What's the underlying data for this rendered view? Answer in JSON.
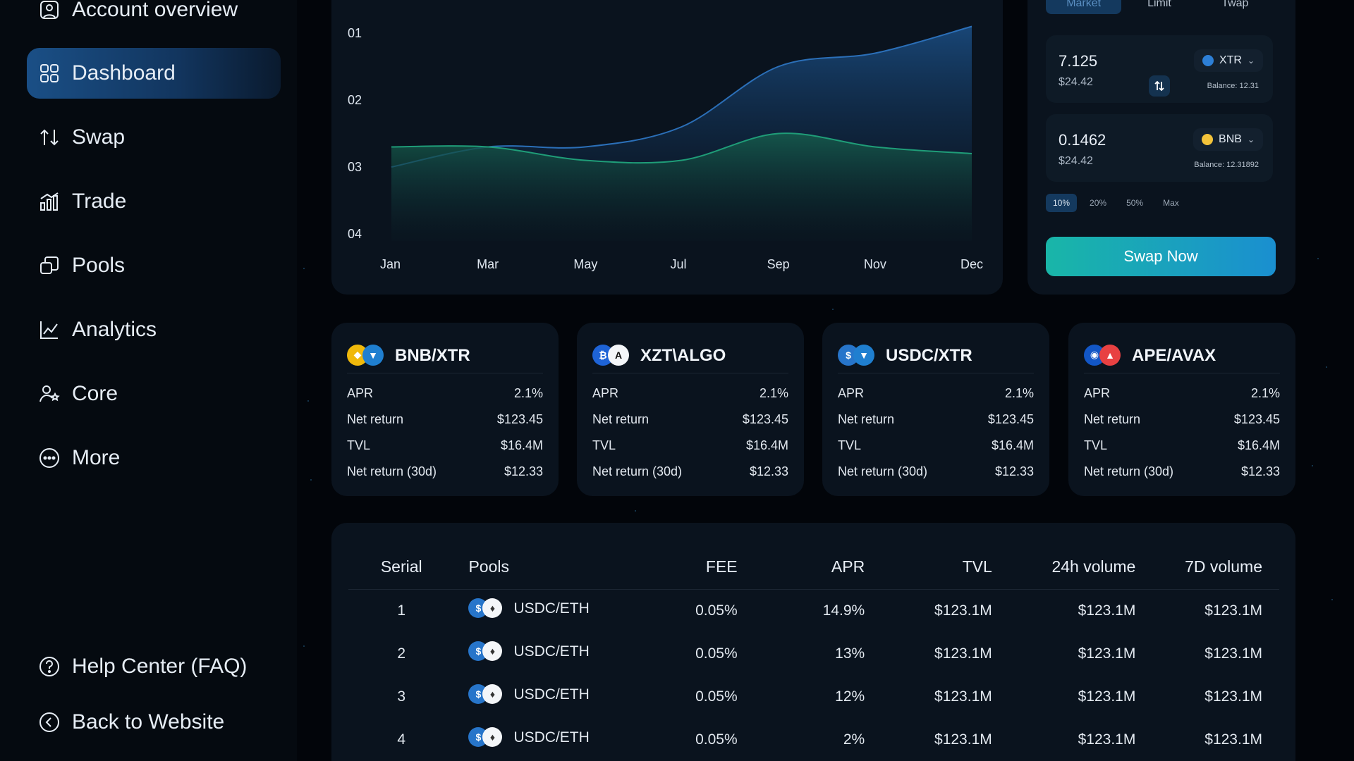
{
  "sidebar": {
    "items": [
      {
        "label": "Account overview",
        "icon": "user-square-icon"
      },
      {
        "label": "Dashboard",
        "icon": "grid-icon",
        "active": true
      },
      {
        "label": "Swap",
        "icon": "swap-arrows-icon"
      },
      {
        "label": "Trade",
        "icon": "bar-chart-icon"
      },
      {
        "label": "Pools",
        "icon": "stacked-coins-icon"
      },
      {
        "label": "Analytics",
        "icon": "line-chart-icon"
      },
      {
        "label": "Core",
        "icon": "user-star-icon"
      },
      {
        "label": "More",
        "icon": "more-circle-icon"
      }
    ],
    "bottom": [
      {
        "label": "Help Center (FAQ)",
        "icon": "question-circle-icon"
      },
      {
        "label": "Back to Website",
        "icon": "back-circle-icon"
      }
    ]
  },
  "chart_data": {
    "type": "area",
    "x": [
      "Jan",
      "Mar",
      "May",
      "Jul",
      "Sep",
      "Nov",
      "Dec"
    ],
    "y_ticks": [
      "01",
      "02",
      "03",
      "04"
    ],
    "series": [
      {
        "color": "#2b6fb8",
        "values": [
          3.0,
          2.7,
          2.7,
          2.4,
          1.5,
          1.3,
          0.9
        ]
      },
      {
        "color": "#1f9d78",
        "values": [
          2.7,
          2.7,
          2.9,
          2.9,
          2.5,
          2.7,
          2.8
        ]
      }
    ],
    "ylim": [
      0.7,
      4.0
    ]
  },
  "swap": {
    "tabs": [
      "Market",
      "Limit",
      "Twap"
    ],
    "from": {
      "amount": "7.125",
      "usd": "$24.42",
      "token": "XTR",
      "balance": "Balance: 12.31",
      "color": "#2d7fd6"
    },
    "to": {
      "amount": "0.1462",
      "usd": "$24.42",
      "token": "BNB",
      "balance": "Balance: 12.31892",
      "color": "#f3c33a"
    },
    "percents": [
      "10%",
      "20%",
      "50%",
      "Max"
    ],
    "button": "Swap Now"
  },
  "pools_cards": [
    {
      "pair": "BNB/XTR",
      "icon_colors": [
        "#f0b90b",
        "#1f7fd0"
      ],
      "apr": "2.1%",
      "net_return": "$123.45",
      "tvl": "$16.4M",
      "net_return_30d": "$12.33"
    },
    {
      "pair": "XZT\\ALGO",
      "icon_colors": [
        "#1e63d6",
        "#f4f6f9"
      ],
      "apr": "2.1%",
      "net_return": "$123.45",
      "tvl": "$16.4M",
      "net_return_30d": "$12.33"
    },
    {
      "pair": "USDC/XTR",
      "icon_colors": [
        "#2775ca",
        "#1f7fd0"
      ],
      "apr": "2.1%",
      "net_return": "$123.45",
      "tvl": "$16.4M",
      "net_return_30d": "$12.33"
    },
    {
      "pair": "APE/AVAX",
      "icon_colors": [
        "#1256c6",
        "#e84142"
      ],
      "apr": "2.1%",
      "net_return": "$123.45",
      "tvl": "$16.4M",
      "net_return_30d": "$12.33"
    }
  ],
  "pool_labels": {
    "apr": "APR",
    "net_return": "Net return",
    "tvl": "TVL",
    "net_return_30d": "Net return (30d)"
  },
  "table": {
    "headers": [
      "Serial",
      "Pools",
      "FEE",
      "APR",
      "TVL",
      "24h volume",
      "7D volume"
    ],
    "rows": [
      {
        "serial": "1",
        "pool": "USDC/ETH",
        "fee": "0.05%",
        "apr": "14.9%",
        "tvl": "$123.1M",
        "vol24": "$123.1M",
        "vol7": "$123.1M"
      },
      {
        "serial": "2",
        "pool": "USDC/ETH",
        "fee": "0.05%",
        "apr": "13%",
        "tvl": "$123.1M",
        "vol24": "$123.1M",
        "vol7": "$123.1M"
      },
      {
        "serial": "3",
        "pool": "USDC/ETH",
        "fee": "0.05%",
        "apr": "12%",
        "tvl": "$123.1M",
        "vol24": "$123.1M",
        "vol7": "$123.1M"
      },
      {
        "serial": "4",
        "pool": "USDC/ETH",
        "fee": "0.05%",
        "apr": "2%",
        "tvl": "$123.1M",
        "vol24": "$123.1M",
        "vol7": "$123.1M"
      }
    ]
  }
}
